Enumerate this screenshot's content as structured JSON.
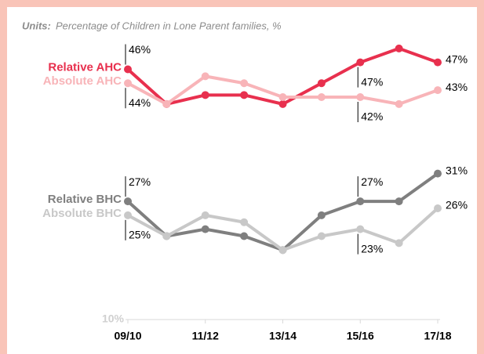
{
  "chart_data": {
    "type": "line",
    "units_label": "Units:",
    "subtitle": "Percentage of Children in Lone Parent families, %",
    "categories": [
      "09/10",
      null,
      "11/12",
      null,
      "13/14",
      null,
      "15/16",
      null,
      "17/18"
    ],
    "series": [
      {
        "name": "Relative AHC",
        "color": "#e8304e",
        "values": [
          46,
          41,
          42.3,
          42.3,
          41,
          44,
          47,
          49,
          47
        ],
        "value_labels": [
          "46%",
          null,
          null,
          null,
          null,
          null,
          "47%",
          null,
          "47%"
        ]
      },
      {
        "name": "Absolute AHC",
        "color": "#f8b4b8",
        "values": [
          44,
          41,
          45,
          44,
          42,
          42,
          42,
          41,
          43
        ],
        "value_labels": [
          "44%",
          null,
          null,
          null,
          null,
          null,
          "42%",
          null,
          "43%"
        ]
      },
      {
        "name": "Relative BHC",
        "color": "#7f7f7f",
        "values": [
          27,
          22,
          23,
          22,
          20,
          25,
          27,
          27,
          31
        ],
        "value_labels": [
          "27%",
          null,
          null,
          null,
          null,
          null,
          "27%",
          null,
          "31%"
        ]
      },
      {
        "name": "Absolute BHC",
        "color": "#c8c8c8",
        "values": [
          25,
          22,
          25,
          24,
          20,
          22,
          23,
          21,
          26
        ],
        "value_labels": [
          "25%",
          null,
          null,
          null,
          null,
          null,
          "23%",
          null,
          "26%"
        ]
      }
    ],
    "ylim": [
      10,
      50
    ],
    "yticks": [
      {
        "value": 10,
        "label": "10%"
      }
    ],
    "grid": false
  }
}
